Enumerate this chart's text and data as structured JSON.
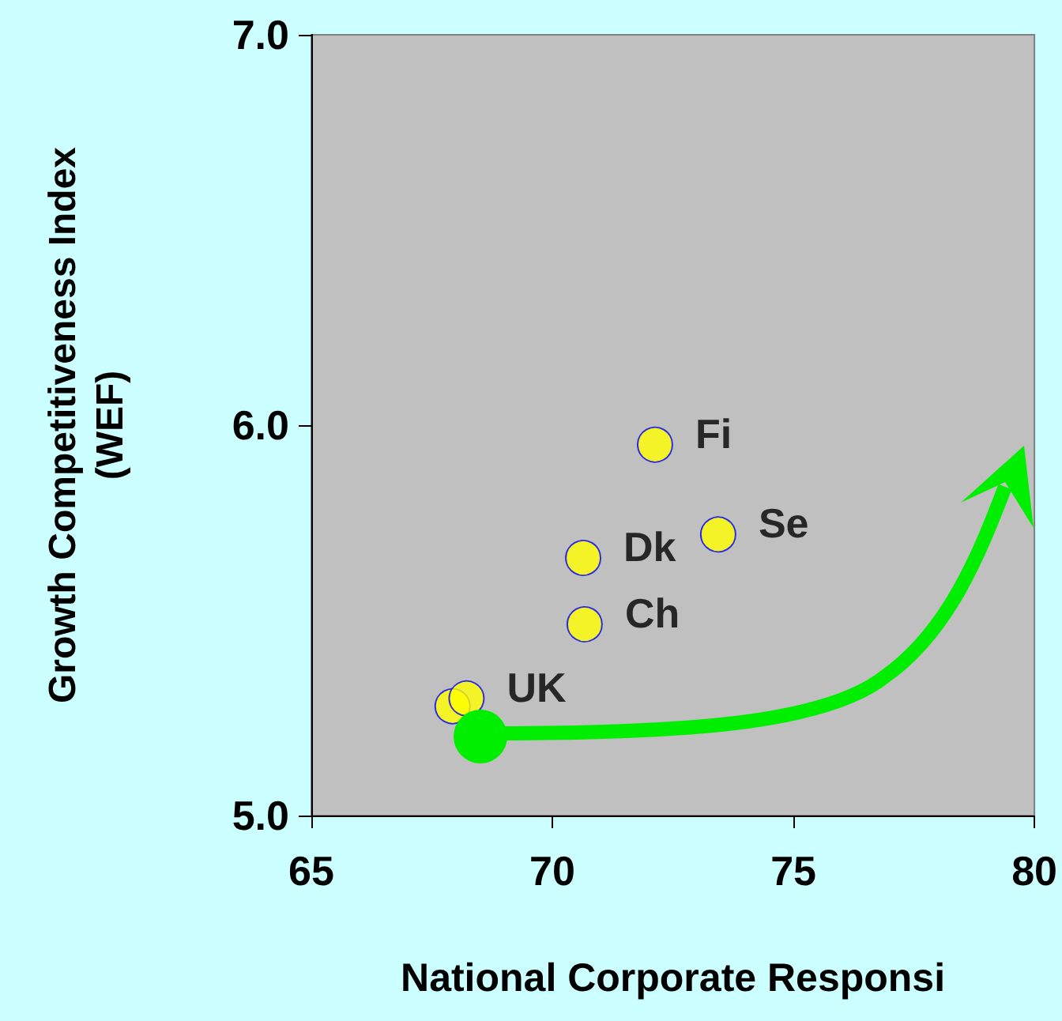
{
  "chart_data": {
    "type": "scatter",
    "xlabel": "National Corporate Responsi",
    "ylabel": "Growth Competitiveness Index\n(WEF)",
    "x": [
      72.13,
      73.44,
      70.64,
      70.67,
      67.93,
      68.22
    ],
    "values": [
      5.95,
      5.72,
      5.66,
      5.49,
      5.28,
      5.3
    ],
    "value_labels": [
      "Fi",
      "Se",
      "Dk",
      "Ch",
      null,
      "UK"
    ],
    "color": "#ffff00",
    "marker": "circle",
    "xlim": [
      65,
      80
    ],
    "xticks": [
      65,
      70,
      75,
      80
    ],
    "ylim": [
      5,
      7
    ],
    "yticks": [
      {
        "value": 5,
        "label": "5.0"
      },
      {
        "value": 6,
        "label": "6.0"
      },
      {
        "value": 7,
        "label": "7.0"
      }
    ]
  }
}
